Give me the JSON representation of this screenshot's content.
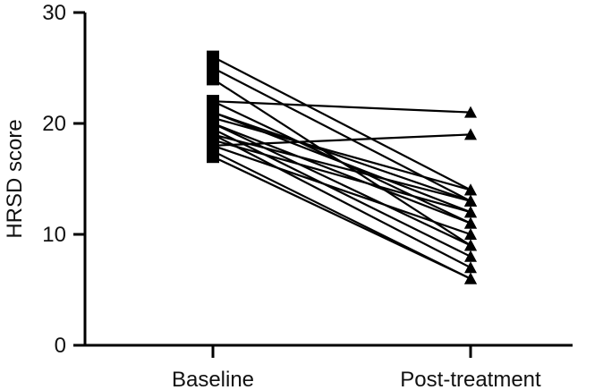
{
  "chart_data": {
    "type": "line",
    "title": "",
    "xlabel": "",
    "ylabel": "HRSD score",
    "ylim": [
      0,
      30
    ],
    "yticks": [
      "0",
      "10",
      "20",
      "30"
    ],
    "categories": [
      "Baseline",
      "Post-treatment"
    ],
    "grid": false,
    "marker_baseline": "square",
    "marker_post": "triangle",
    "color": "#000000",
    "subjects": [
      {
        "values": [
          26,
          14
        ]
      },
      {
        "values": [
          25,
          13
        ]
      },
      {
        "values": [
          24,
          9
        ]
      },
      {
        "values": [
          22,
          21
        ]
      },
      {
        "values": [
          22,
          11
        ]
      },
      {
        "values": [
          21,
          13
        ]
      },
      {
        "values": [
          21,
          12
        ]
      },
      {
        "values": [
          20.5,
          14
        ]
      },
      {
        "values": [
          20,
          11
        ]
      },
      {
        "values": [
          20,
          9
        ]
      },
      {
        "values": [
          19.5,
          8
        ]
      },
      {
        "values": [
          19,
          13
        ]
      },
      {
        "values": [
          19,
          7
        ]
      },
      {
        "values": [
          18.5,
          12
        ]
      },
      {
        "values": [
          18,
          19
        ]
      },
      {
        "values": [
          18,
          10
        ]
      },
      {
        "values": [
          17.5,
          6
        ]
      },
      {
        "values": [
          17,
          6
        ]
      }
    ]
  }
}
